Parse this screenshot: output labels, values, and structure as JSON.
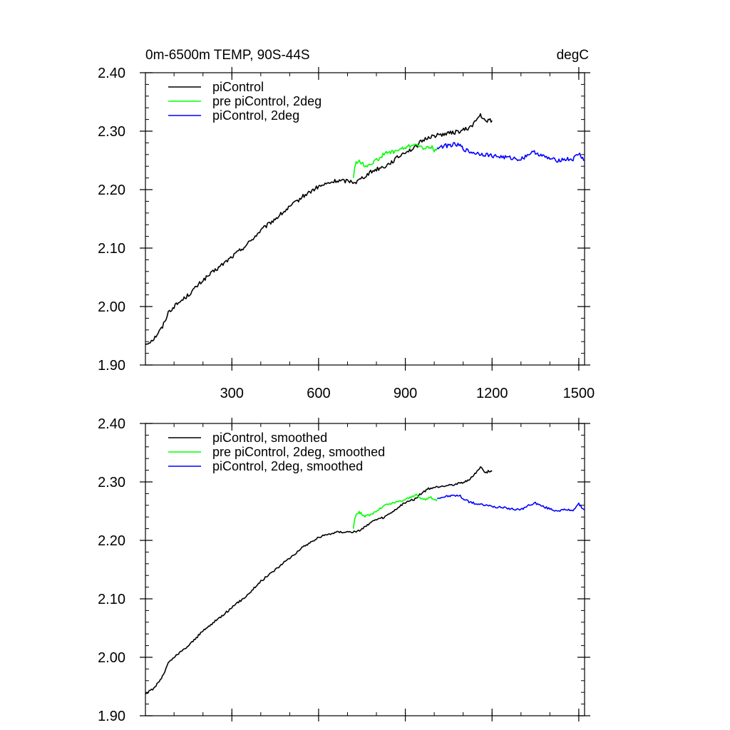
{
  "chart_data": [
    {
      "type": "line",
      "title_left": "0m-6500m TEMP, 90S-44S",
      "title_right": "degC",
      "xlabel": "",
      "ylabel": "",
      "xlim": [
        1,
        1520
      ],
      "ylim": [
        1.9,
        2.4
      ],
      "xticks": [
        300,
        600,
        900,
        1200,
        1500
      ],
      "xtick_labels": [
        "300",
        "600",
        "900",
        "1200",
        "1500"
      ],
      "yticks": [
        1.9,
        2.0,
        2.1,
        2.2,
        2.3,
        2.4
      ],
      "ytick_labels": [
        "1.90",
        "2.00",
        "2.10",
        "2.20",
        "2.30",
        "2.40"
      ],
      "grid": false,
      "legend_position": "top-left",
      "series": [
        {
          "name": "piControl",
          "color": "#000000",
          "x": [
            1,
            30,
            60,
            80,
            100,
            150,
            200,
            250,
            300,
            350,
            400,
            450,
            500,
            550,
            600,
            630,
            660,
            700,
            730,
            750,
            780,
            800,
            830,
            860,
            900,
            930,
            950,
            980,
            1000,
            1030,
            1060,
            1090,
            1120,
            1140,
            1160,
            1170,
            1180,
            1190,
            1200
          ],
          "values": [
            1.935,
            1.945,
            1.965,
            1.99,
            2.0,
            2.02,
            2.045,
            2.065,
            2.085,
            2.105,
            2.13,
            2.15,
            2.17,
            2.19,
            2.205,
            2.21,
            2.215,
            2.215,
            2.213,
            2.22,
            2.23,
            2.235,
            2.24,
            2.25,
            2.265,
            2.27,
            2.28,
            2.29,
            2.292,
            2.295,
            2.297,
            2.3,
            2.305,
            2.315,
            2.328,
            2.32,
            2.315,
            2.32,
            2.318
          ]
        },
        {
          "name": "pre piControl, 2deg",
          "color": "#00ff00",
          "x": [
            720,
            725,
            730,
            740,
            750,
            760,
            780,
            800,
            830,
            860,
            890,
            920,
            935,
            950,
            970,
            985,
            1000,
            1010
          ],
          "values": [
            2.22,
            2.24,
            2.245,
            2.25,
            2.245,
            2.24,
            2.245,
            2.25,
            2.262,
            2.265,
            2.27,
            2.275,
            2.28,
            2.272,
            2.27,
            2.275,
            2.268,
            2.27
          ]
        },
        {
          "name": "piControl, 2deg",
          "color": "#0000ff",
          "x": [
            1010,
            1040,
            1070,
            1090,
            1100,
            1120,
            1150,
            1180,
            1200,
            1250,
            1300,
            1330,
            1350,
            1380,
            1420,
            1450,
            1480,
            1500,
            1510,
            1520
          ],
          "values": [
            2.272,
            2.275,
            2.277,
            2.275,
            2.27,
            2.265,
            2.262,
            2.26,
            2.258,
            2.255,
            2.252,
            2.262,
            2.264,
            2.256,
            2.25,
            2.252,
            2.252,
            2.262,
            2.256,
            2.25
          ]
        }
      ]
    },
    {
      "type": "line",
      "xlim": [
        1,
        1520
      ],
      "ylim": [
        1.9,
        2.4
      ],
      "xticks": [
        300,
        600,
        900,
        1200,
        1500
      ],
      "yticks": [
        1.9,
        2.0,
        2.1,
        2.2,
        2.3,
        2.4
      ],
      "ytick_labels": [
        "1.90",
        "2.00",
        "2.10",
        "2.20",
        "2.30",
        "2.40"
      ],
      "grid": false,
      "legend_position": "top-left",
      "series": [
        {
          "name": "piControl, smoothed",
          "color": "#000000",
          "x": [
            1,
            30,
            60,
            80,
            100,
            150,
            200,
            250,
            300,
            350,
            400,
            450,
            500,
            550,
            600,
            630,
            660,
            700,
            730,
            750,
            780,
            800,
            830,
            860,
            900,
            930,
            950,
            980,
            1000,
            1030,
            1060,
            1090,
            1120,
            1140,
            1160,
            1170,
            1180,
            1190,
            1200
          ],
          "values": [
            1.937,
            1.947,
            1.967,
            1.99,
            2.0,
            2.02,
            2.045,
            2.065,
            2.085,
            2.105,
            2.13,
            2.15,
            2.17,
            2.19,
            2.205,
            2.21,
            2.214,
            2.215,
            2.214,
            2.22,
            2.23,
            2.235,
            2.24,
            2.25,
            2.265,
            2.27,
            2.278,
            2.288,
            2.29,
            2.293,
            2.295,
            2.298,
            2.303,
            2.313,
            2.326,
            2.32,
            2.316,
            2.319,
            2.318
          ]
        },
        {
          "name": "pre piControl, 2deg, smoothed",
          "color": "#00ff00",
          "x": [
            720,
            725,
            730,
            740,
            750,
            760,
            780,
            800,
            830,
            860,
            890,
            920,
            935,
            950,
            970,
            985,
            1000,
            1010
          ],
          "values": [
            2.22,
            2.238,
            2.244,
            2.248,
            2.245,
            2.241,
            2.244,
            2.25,
            2.26,
            2.264,
            2.268,
            2.274,
            2.279,
            2.272,
            2.27,
            2.274,
            2.269,
            2.27
          ]
        },
        {
          "name": "piControl, 2deg, smoothed",
          "color": "#0000ff",
          "x": [
            1010,
            1040,
            1070,
            1090,
            1100,
            1120,
            1150,
            1180,
            1200,
            1250,
            1300,
            1330,
            1350,
            1380,
            1420,
            1450,
            1480,
            1500,
            1510,
            1520
          ],
          "values": [
            2.272,
            2.275,
            2.277,
            2.276,
            2.271,
            2.266,
            2.262,
            2.26,
            2.258,
            2.255,
            2.252,
            2.261,
            2.264,
            2.257,
            2.251,
            2.252,
            2.252,
            2.262,
            2.257,
            2.252
          ]
        }
      ]
    }
  ]
}
